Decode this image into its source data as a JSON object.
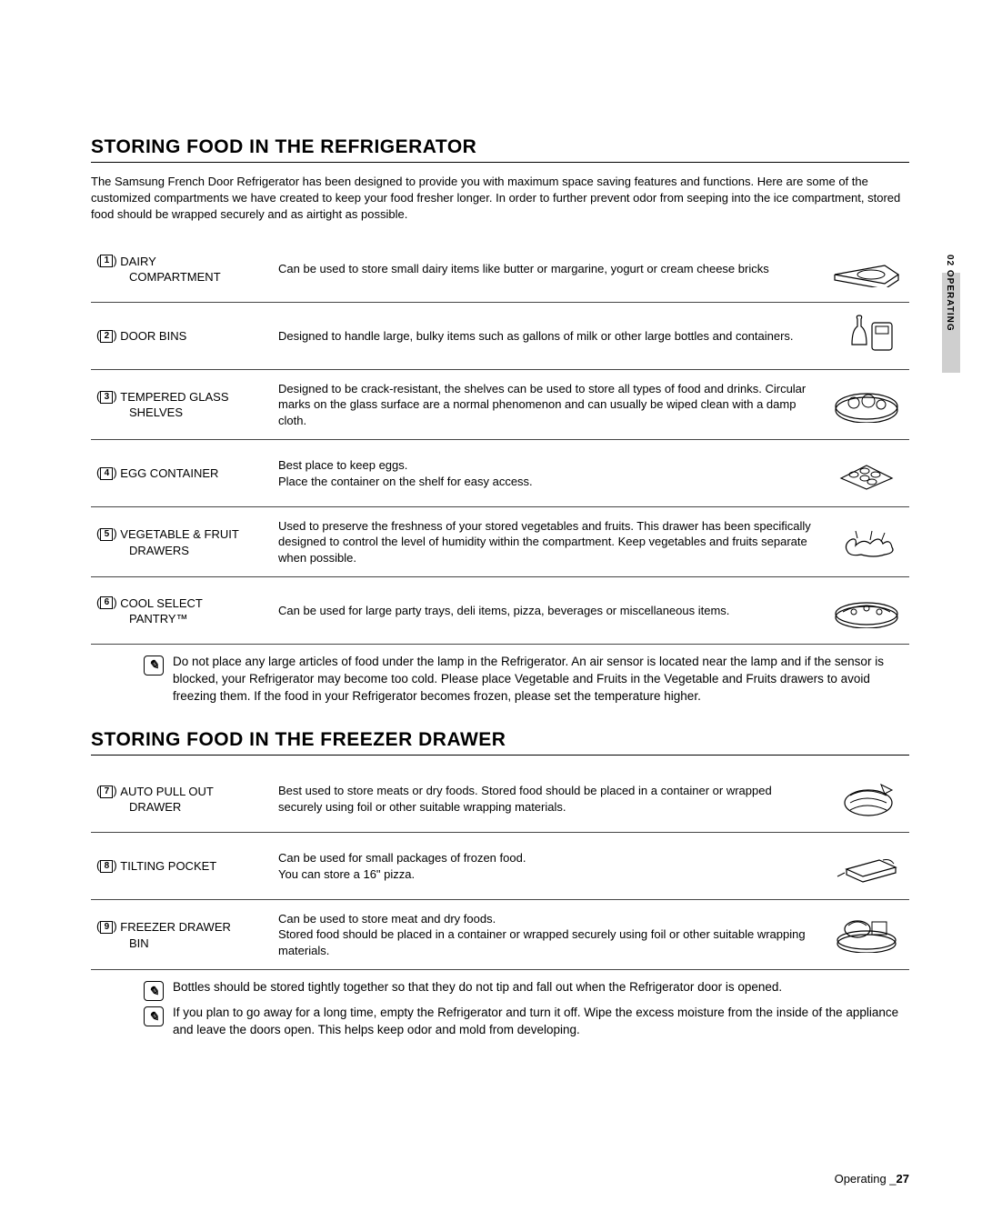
{
  "side_label": "02 OPERATING",
  "section1": {
    "title": "STORING FOOD IN THE REFRIGERATOR",
    "intro": "The Samsung French Door Refrigerator has been designed to provide you with maximum space saving features and functions. Here are some of the customized compartments we have created to keep your food fresher longer. In order to further prevent odor from seeping into the ice compartment, stored food should be wrapped securely and as airtight as possible.",
    "rows": [
      {
        "n": "1",
        "label": "DAIRY",
        "label2": "COMPARTMENT",
        "desc": "Can be used to store small dairy items like butter or margarine, yogurt or cream cheese bricks"
      },
      {
        "n": "2",
        "label": "DOOR BINS",
        "label2": "",
        "desc": "Designed to handle large, bulky items such as gallons of milk or other large bottles and containers."
      },
      {
        "n": "3",
        "label": "TEMPERED GLASS",
        "label2": "SHELVES",
        "desc": "Designed to be crack-resistant, the shelves can be used to store all types of food and drinks. Circular marks on the glass surface are a normal phenomenon and can usually be wiped clean with a damp cloth."
      },
      {
        "n": "4",
        "label": "EGG CONTAINER",
        "label2": "",
        "desc": "Best place to keep eggs.\nPlace the container on the shelf for easy access."
      },
      {
        "n": "5",
        "label": "VEGETABLE & FRUIT",
        "label2": "DRAWERS",
        "desc": "Used to preserve the freshness of your stored vegetables and fruits. This drawer has been specifically designed to control the level of humidity within the compartment. Keep vegetables and fruits separate when possible."
      },
      {
        "n": "6",
        "label": "COOL SELECT",
        "label2": "PANTRY™",
        "desc": "Can be used for large party trays, deli items, pizza, beverages or miscellaneous items."
      }
    ],
    "note": "Do not place any large articles of food under the lamp in the Refrigerator. An air sensor is located near the lamp and if the sensor is blocked, your Refrigerator may become too cold. Please place Vegetable and Fruits in the Vegetable and Fruits drawers to avoid freezing them. If the food in your Refrigerator becomes frozen, please set the temperature higher."
  },
  "section2": {
    "title": "STORING FOOD IN THE FREEZER DRAWER",
    "rows": [
      {
        "n": "7",
        "label": "AUTO PULL OUT",
        "label2": "DRAWER",
        "desc": "Best used to store meats or dry foods. Stored food should be placed in a container or wrapped securely using foil or other suitable wrapping materials."
      },
      {
        "n": "8",
        "label": "TILTING POCKET",
        "label2": "",
        "desc": "Can be used for small packages of frozen food.\nYou can store a 16\" pizza."
      },
      {
        "n": "9",
        "label": "FREEZER DRAWER",
        "label2": "BIN",
        "desc": "Can be used to store meat and dry foods.\nStored food should be placed in a container or wrapped securely using foil or other suitable wrapping materials."
      }
    ],
    "note1": "Bottles should be stored tightly together so that they do not tip and fall out when the Refrigerator door is opened.",
    "note2": "If you plan to go away for a long time, empty the Refrigerator and turn it off. Wipe the excess moisture from the inside of the appliance and leave the doors open. This helps keep odor and mold from developing."
  },
  "footer": {
    "label": "Operating _",
    "page": "27"
  }
}
